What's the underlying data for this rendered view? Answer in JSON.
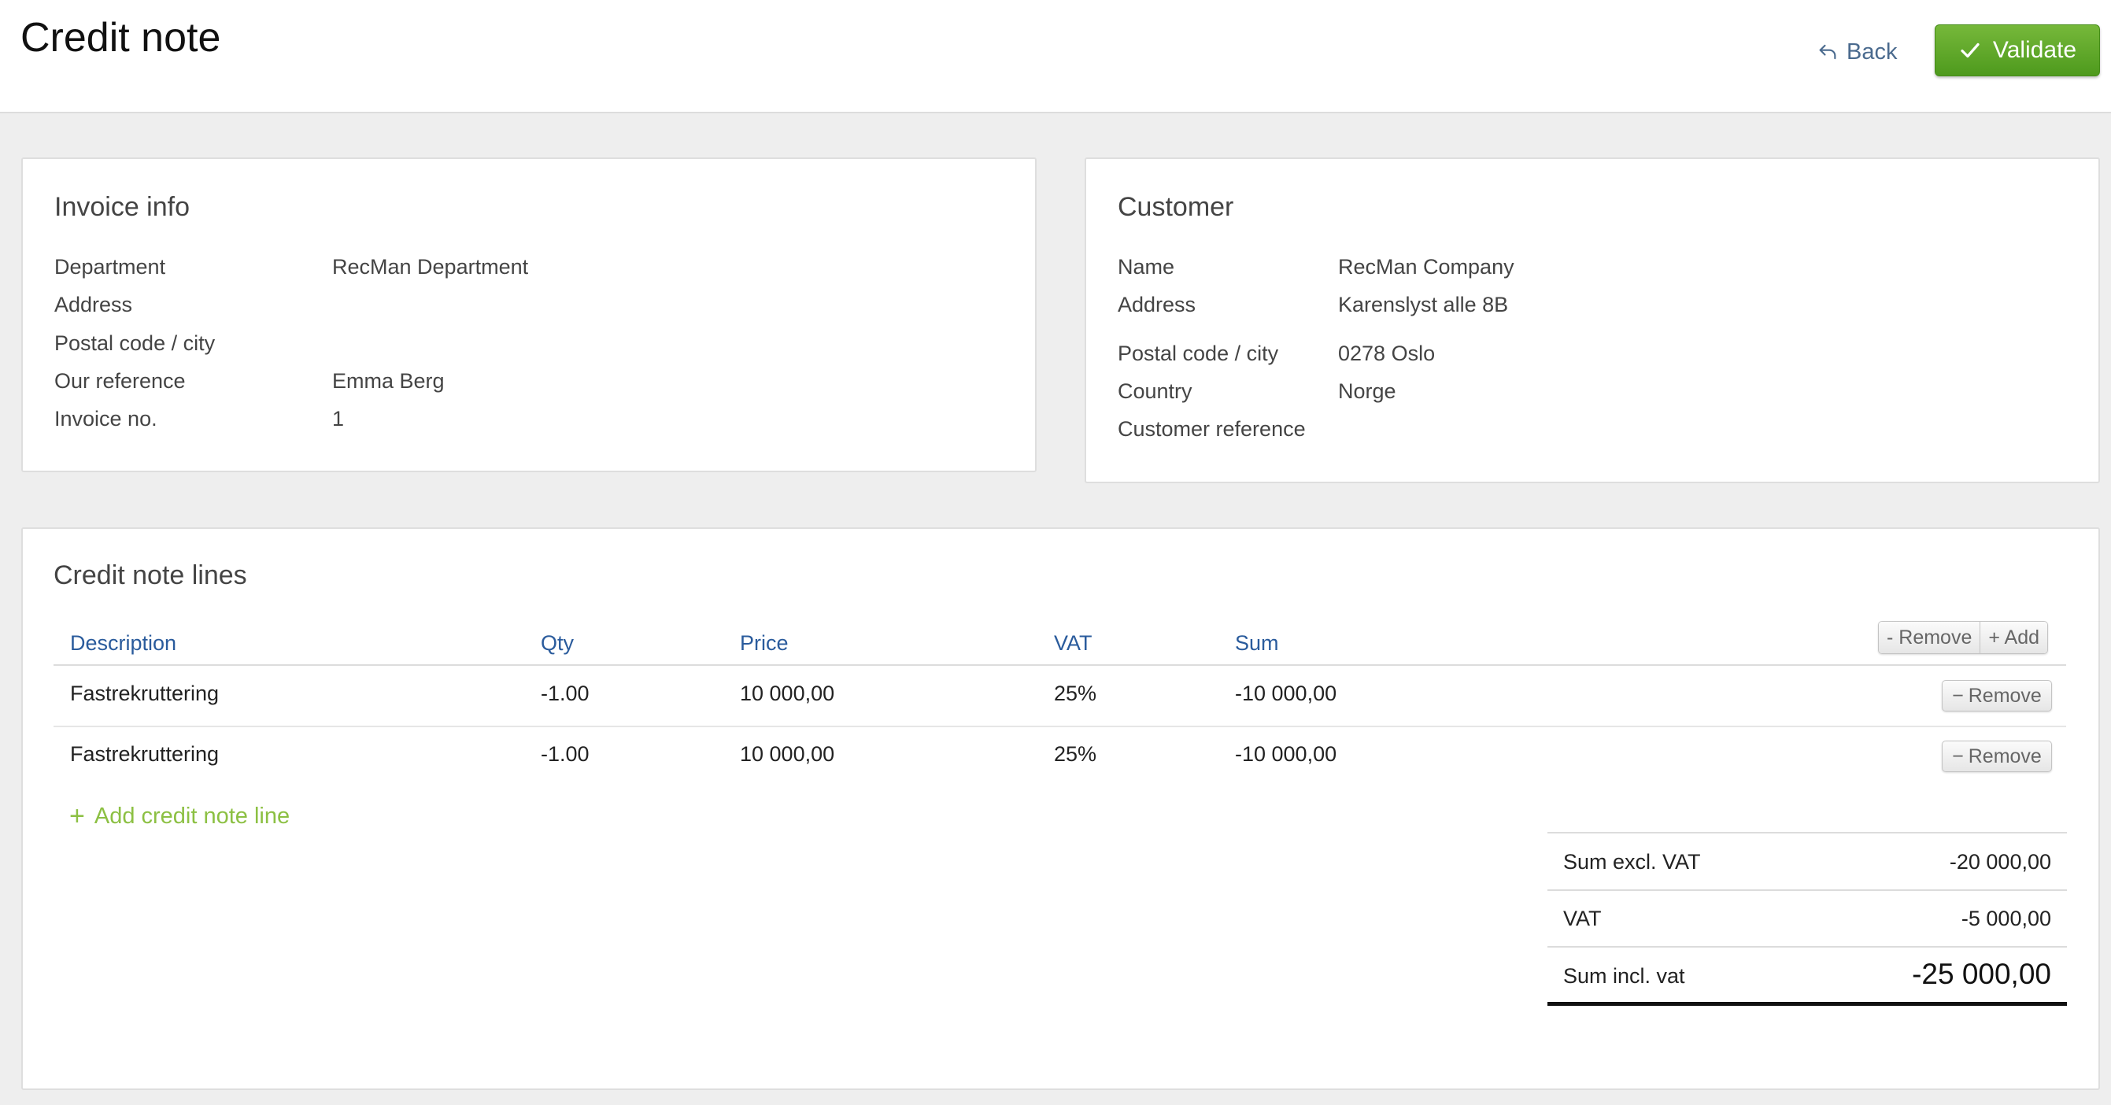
{
  "header": {
    "title": "Credit note",
    "back_label": "Back",
    "validate_label": "Validate"
  },
  "invoice_info": {
    "title": "Invoice info",
    "rows": [
      {
        "label": "Department",
        "value": "RecMan Department"
      },
      {
        "label": "Address",
        "value": ""
      },
      {
        "label": "Postal code / city",
        "value": ""
      },
      {
        "label": "Our reference",
        "value": "Emma Berg"
      },
      {
        "label": "Invoice no.",
        "value": "1"
      }
    ]
  },
  "customer": {
    "title": "Customer",
    "rows": [
      {
        "label": "Name",
        "value": "RecMan Company"
      },
      {
        "label": "Address",
        "value": "Karenslyst alle 8B"
      },
      {
        "label": "Postal code / city",
        "value": "0278 Oslo"
      },
      {
        "label": "Country",
        "value": "Norge"
      },
      {
        "label": "Customer reference",
        "value": ""
      }
    ]
  },
  "lines": {
    "title": "Credit note lines",
    "columns": [
      "Description",
      "Qty",
      "Price",
      "VAT",
      "Sum"
    ],
    "group_remove_label": "- Remove",
    "group_add_label": "+ Add",
    "rows": [
      {
        "description": "Fastrekruttering",
        "qty": "-1.00",
        "price": "10 000,00",
        "vat": "25%",
        "sum": "-10 000,00",
        "remove_label": "Remove"
      },
      {
        "description": "Fastrekruttering",
        "qty": "-1.00",
        "price": "10 000,00",
        "vat": "25%",
        "sum": "-10 000,00",
        "remove_label": "Remove"
      }
    ],
    "add_line_label": "Add credit note line"
  },
  "totals": {
    "sum_excl_vat_label": "Sum excl. VAT",
    "sum_excl_vat_value": "-20 000,00",
    "vat_label": "VAT",
    "vat_value": "-5 000,00",
    "sum_incl_vat_label": "Sum incl. vat",
    "sum_incl_vat_value": "-25 000,00"
  },
  "colors": {
    "validate_green": "#5aa828",
    "link_blue": "#2a5b9c",
    "add_line_green": "#8cc043"
  }
}
